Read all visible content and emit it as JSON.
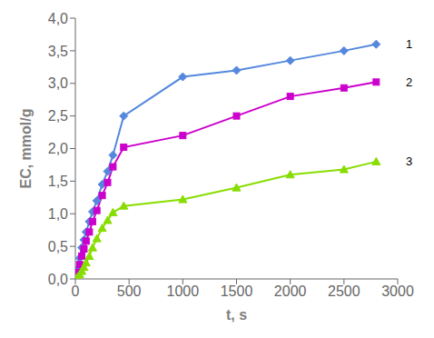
{
  "chart_data": {
    "type": "line",
    "x_label": "t, s",
    "y_label": "EC, mmol/g",
    "series": [
      {
        "color": "#5588dd",
        "marker": "diamond",
        "x": [
          0,
          20,
          40,
          60,
          80,
          100,
          130,
          160,
          200,
          250,
          300,
          350,
          450,
          1000,
          1500,
          2000,
          2500,
          2800
        ],
        "values": [
          0.0,
          0.15,
          0.32,
          0.48,
          0.6,
          0.72,
          0.88,
          1.03,
          1.2,
          1.45,
          1.65,
          1.9,
          2.5,
          3.1,
          3.2,
          3.35,
          3.5,
          3.6
        ]
      },
      {
        "color": "#cc00cc",
        "marker": "square",
        "x": [
          0,
          20,
          40,
          60,
          80,
          100,
          130,
          160,
          200,
          250,
          300,
          350,
          450,
          1000,
          1500,
          2000,
          2500,
          2800
        ],
        "values": [
          0.0,
          0.1,
          0.22,
          0.35,
          0.46,
          0.58,
          0.72,
          0.88,
          1.05,
          1.28,
          1.48,
          1.72,
          2.02,
          2.2,
          2.5,
          2.8,
          2.93,
          3.02
        ]
      },
      {
        "color": "#88dd00",
        "marker": "triangle",
        "x": [
          0,
          20,
          40,
          60,
          80,
          100,
          130,
          160,
          200,
          250,
          300,
          350,
          450,
          1000,
          1500,
          2000,
          2500,
          2800
        ],
        "values": [
          0.0,
          0.03,
          0.07,
          0.12,
          0.18,
          0.25,
          0.35,
          0.48,
          0.62,
          0.78,
          0.9,
          1.02,
          1.12,
          1.22,
          1.4,
          1.6,
          1.68,
          1.8
        ]
      }
    ],
    "xlim": [
      0,
      3000
    ],
    "ylim": [
      0.0,
      4.0
    ],
    "xticks": [
      0,
      500,
      1000,
      1500,
      2000,
      2500,
      3000
    ],
    "yticks": [
      {
        "value": 0.0,
        "label": "0,0"
      },
      {
        "value": 0.5,
        "label": "0,5"
      },
      {
        "value": 1.0,
        "label": "1,0"
      },
      {
        "value": 1.5,
        "label": "1,5"
      },
      {
        "value": 2.0,
        "label": "2,0"
      },
      {
        "value": 2.5,
        "label": "2,5"
      },
      {
        "value": 3.0,
        "label": "3,0"
      },
      {
        "value": 3.5,
        "label": "3,5"
      },
      {
        "value": 4.0,
        "label": "4,0"
      }
    ],
    "annotations": [
      {
        "text": "1",
        "y": 3.6
      },
      {
        "text": "2",
        "y": 3.02
      },
      {
        "text": "3",
        "y": 1.8
      }
    ],
    "grid": false,
    "legend": false
  }
}
